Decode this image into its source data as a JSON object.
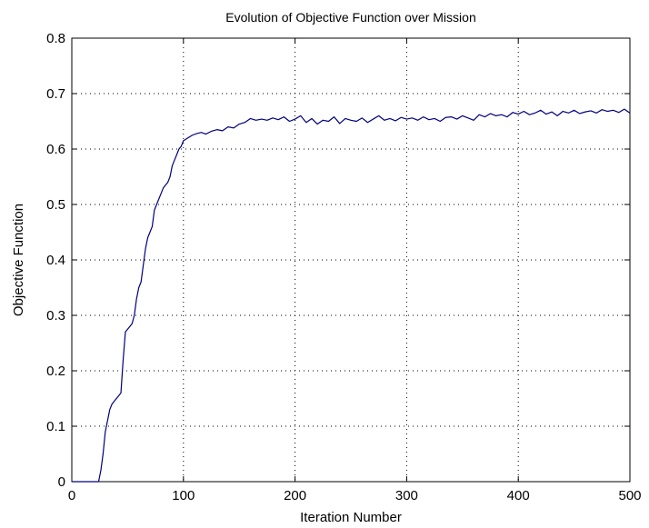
{
  "chart_data": {
    "type": "line",
    "title": "Evolution of Objective Function over Mission",
    "xlabel": "Iteration Number",
    "ylabel": "Objective Function",
    "xlim": [
      0,
      500
    ],
    "ylim": [
      0,
      0.8
    ],
    "xticks": [
      "0",
      "100",
      "200",
      "300",
      "400",
      "500"
    ],
    "yticks": [
      "0",
      "0.1",
      "0.2",
      "0.3",
      "0.4",
      "0.5",
      "0.6",
      "0.7",
      "0.8"
    ],
    "grid": true,
    "line_color": "#00007f",
    "series": [
      {
        "x": [
          0,
          20,
          24,
          26,
          28,
          30,
          32,
          34,
          36,
          38,
          40,
          42,
          44,
          46,
          48,
          50,
          52,
          54,
          56,
          58,
          60,
          62,
          64,
          66,
          68,
          70,
          72,
          74,
          76,
          78,
          80,
          82,
          84,
          86,
          88,
          90,
          92,
          94,
          96,
          98,
          100,
          104,
          108,
          112,
          116,
          120,
          125,
          130,
          135,
          140,
          145,
          150,
          155,
          160,
          165,
          170,
          175,
          180,
          185,
          190,
          195,
          200,
          205,
          210,
          215,
          220,
          225,
          230,
          235,
          240,
          245,
          250,
          255,
          260,
          265,
          270,
          275,
          280,
          285,
          290,
          295,
          300,
          305,
          310,
          315,
          320,
          325,
          330,
          335,
          340,
          345,
          350,
          355,
          360,
          365,
          370,
          375,
          380,
          385,
          390,
          395,
          400,
          405,
          410,
          415,
          420,
          425,
          430,
          435,
          440,
          445,
          450,
          455,
          460,
          465,
          470,
          475,
          480,
          485,
          490,
          495,
          500
        ],
        "y": [
          0,
          0,
          0,
          0.02,
          0.05,
          0.09,
          0.11,
          0.13,
          0.14,
          0.145,
          0.15,
          0.155,
          0.16,
          0.22,
          0.27,
          0.275,
          0.28,
          0.285,
          0.3,
          0.33,
          0.35,
          0.36,
          0.39,
          0.42,
          0.44,
          0.45,
          0.46,
          0.49,
          0.5,
          0.51,
          0.52,
          0.53,
          0.535,
          0.54,
          0.55,
          0.57,
          0.58,
          0.59,
          0.6,
          0.605,
          0.615,
          0.62,
          0.625,
          0.628,
          0.63,
          0.627,
          0.632,
          0.635,
          0.633,
          0.64,
          0.638,
          0.645,
          0.648,
          0.655,
          0.652,
          0.654,
          0.652,
          0.656,
          0.653,
          0.658,
          0.65,
          0.654,
          0.66,
          0.648,
          0.655,
          0.645,
          0.652,
          0.65,
          0.658,
          0.646,
          0.655,
          0.652,
          0.65,
          0.656,
          0.648,
          0.654,
          0.66,
          0.652,
          0.655,
          0.651,
          0.657,
          0.654,
          0.656,
          0.652,
          0.658,
          0.653,
          0.655,
          0.65,
          0.657,
          0.658,
          0.654,
          0.66,
          0.656,
          0.652,
          0.662,
          0.658,
          0.664,
          0.66,
          0.662,
          0.658,
          0.666,
          0.663,
          0.668,
          0.662,
          0.665,
          0.67,
          0.663,
          0.667,
          0.66,
          0.668,
          0.665,
          0.67,
          0.664,
          0.667,
          0.669,
          0.665,
          0.671,
          0.668,
          0.67,
          0.666,
          0.672,
          0.665
        ]
      }
    ]
  }
}
